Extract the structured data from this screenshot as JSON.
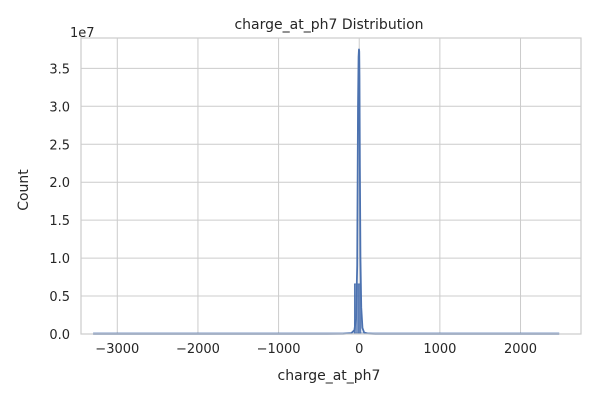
{
  "chart_data": {
    "type": "histogram",
    "title": "charge_at_ph7 Distribution",
    "xlabel": "charge_at_ph7",
    "ylabel": "Count",
    "y_offset_label": "1e7",
    "xlim": [
      -3450,
      2750
    ],
    "ylim": [
      0,
      3.9
    ],
    "x_ticks": [
      -3000,
      -2000,
      -1000,
      0,
      1000,
      2000
    ],
    "x_tick_labels": [
      "−3000",
      "−2000",
      "−1000",
      "0",
      "1000",
      "2000"
    ],
    "y_ticks": [
      0.0,
      0.5,
      1.0,
      1.5,
      2.0,
      2.5,
      3.0,
      3.5
    ],
    "y_tick_labels": [
      "0.0",
      "0.5",
      "1.0",
      "1.5",
      "2.0",
      "2.5",
      "3.0",
      "3.5"
    ],
    "data_range": [
      -3300,
      2480
    ],
    "bins": [
      {
        "x0": -60,
        "x1": -5,
        "count": 0.66
      },
      {
        "x0": -5,
        "x1": 20,
        "count": 0.66
      }
    ],
    "kde": {
      "x": [
        -3300,
        -1000,
        -400,
        -200,
        -100,
        -60,
        -40,
        -25,
        -15,
        -8,
        -3,
        0,
        3,
        8,
        15,
        25,
        40,
        60,
        100,
        200,
        400,
        1000,
        2480
      ],
      "y": [
        0.0,
        0.0,
        0.0,
        0.002,
        0.01,
        0.05,
        0.2,
        0.9,
        3.0,
        3.65,
        3.75,
        3.72,
        3.4,
        2.2,
        1.0,
        0.35,
        0.08,
        0.02,
        0.005,
        0.0,
        0.0,
        0.0,
        0.0
      ]
    },
    "grid": true,
    "colors": {
      "bar_fill": "#4c72b0",
      "kde_line": "#4c72b0",
      "grid": "#cccccc",
      "background": "#ffffff"
    }
  }
}
